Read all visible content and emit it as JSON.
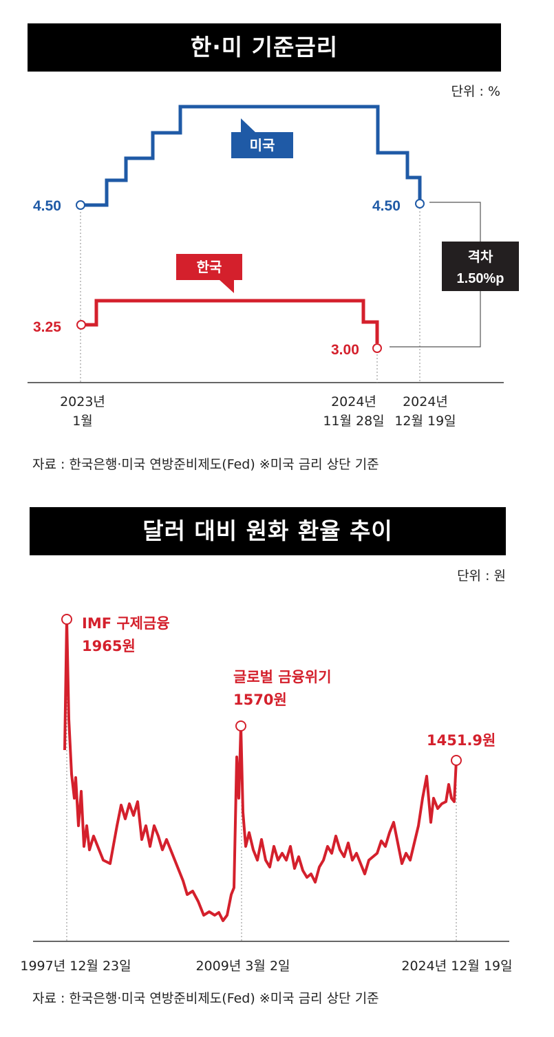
{
  "chart_data": [
    {
      "type": "line",
      "title": "한·미 기준금리",
      "unit_label": "단위 : %",
      "x_labels": [
        {
          "line1": "2023년",
          "line2": "1월"
        },
        {
          "line1": "2024년",
          "line2": "11월 28일"
        },
        {
          "line1": "2024년",
          "line2": "12월 19일"
        }
      ],
      "series": [
        {
          "name": "미국",
          "color": "#1f5aa6",
          "start_label": "4.50",
          "end_label": "4.50",
          "values": [
            4.5,
            4.75,
            5.0,
            5.25,
            5.5,
            5.5,
            5.25,
            5.0,
            4.75,
            4.5
          ]
        },
        {
          "name": "한국",
          "color": "#d4202c",
          "start_label": "3.25",
          "end_label": "3.00",
          "values": [
            3.25,
            3.5,
            3.5,
            3.25,
            3.0
          ]
        }
      ],
      "gap_label_line1": "격차",
      "gap_label_line2": "1.50%p",
      "source": "자료 : 한국은행·미국 연방준비제도(Fed) ※미국 금리 상단 기준"
    },
    {
      "type": "line",
      "title": "달러 대비 원화 환율 추이",
      "unit_label": "단위 : 원",
      "x_labels": [
        "1997년 12월 23일",
        "2009년 3월 2일",
        "2024년 12월 19일"
      ],
      "annotations": [
        {
          "line1": "IMF 구제금융",
          "line2": "1965원"
        },
        {
          "line1": "글로벌 금융위기",
          "line2": "1570원"
        },
        {
          "line1": "1451.9원",
          "line2": ""
        }
      ],
      "series": [
        {
          "color": "#d4202c",
          "key_values": [
            {
              "date": "1997-12-23",
              "value": 1965
            },
            {
              "date": "2009-03-02",
              "value": 1570
            },
            {
              "date": "2024-12-19",
              "value": 1451.9
            }
          ]
        }
      ],
      "source": "자료 : 한국은행·미국 연방준비제도(Fed) ※미국 금리 상단 기준"
    }
  ]
}
